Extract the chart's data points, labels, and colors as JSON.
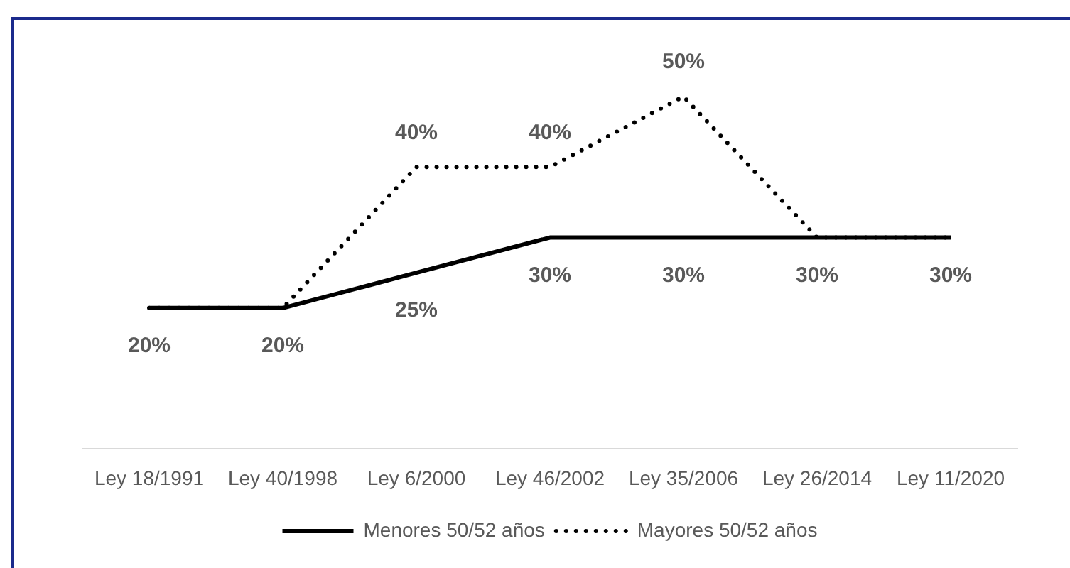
{
  "chart_data": {
    "type": "line",
    "categories": [
      "Ley 18/1991",
      "Ley 40/1998",
      "Ley 6/2000",
      "Ley 46/2002",
      "Ley 35/2006",
      "Ley 26/2014",
      "Ley 11/2020"
    ],
    "series": [
      {
        "name": "Menores 50/52 años",
        "color": "#000000",
        "line_style": "solid",
        "values": [
          20,
          20,
          25,
          30,
          30,
          30,
          30
        ],
        "value_labels": [
          "20%",
          "20%",
          "25%",
          "30%",
          "30%",
          "30%",
          "30%"
        ]
      },
      {
        "name": "Mayores 50/52 años",
        "color": "#000000",
        "line_style": "dotted",
        "values": [
          20,
          20,
          40,
          40,
          50,
          30,
          30
        ],
        "value_labels": [
          null,
          null,
          "40%",
          "40%",
          "50%",
          null,
          null
        ]
      }
    ],
    "legend": "bottom",
    "marker": "none",
    "tick_labels": "x"
  }
}
